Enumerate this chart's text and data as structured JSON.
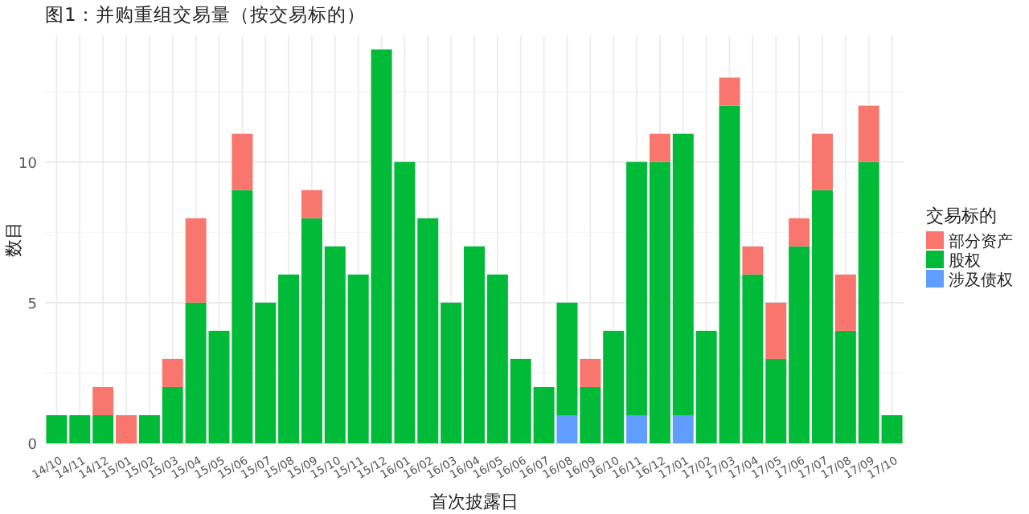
{
  "chart_data": {
    "type": "bar",
    "title": "图1：并购重组交易量（按交易标的）",
    "xlabel": "首次披露日",
    "ylabel": "数目",
    "legend_title": "交易标的",
    "stacked": true,
    "grid": true,
    "legend": "right",
    "categories": [
      "14/10",
      "14/11",
      "14/12",
      "15/01",
      "15/02",
      "15/03",
      "15/04",
      "15/05",
      "15/06",
      "15/07",
      "15/08",
      "15/09",
      "15/10",
      "15/11",
      "15/12",
      "16/01",
      "16/02",
      "16/03",
      "16/04",
      "16/05",
      "16/06",
      "16/07",
      "16/08",
      "16/09",
      "16/10",
      "16/11",
      "16/12",
      "17/01",
      "17/02",
      "17/03",
      "17/04",
      "17/05",
      "17/06",
      "17/07",
      "17/08",
      "17/09",
      "17/10"
    ],
    "ylim": [
      0,
      14.5
    ],
    "yticks": [
      0,
      {
        "value": 2.5,
        "label": null
      },
      5,
      {
        "value": 7.5,
        "label": null
      },
      10,
      {
        "value": 12.5,
        "label": null
      }
    ],
    "series": [
      {
        "name": "涉及债权",
        "color": "#619cff",
        "values": [
          0,
          0,
          0,
          0,
          0,
          0,
          0,
          0,
          0,
          0,
          0,
          0,
          0,
          0,
          0,
          0,
          0,
          0,
          0,
          0,
          0,
          0,
          1,
          0,
          0,
          1,
          0,
          1,
          0,
          0,
          0,
          0,
          0,
          0,
          0,
          0,
          0
        ]
      },
      {
        "name": "股权",
        "color": "#00ba38",
        "values": [
          1,
          1,
          1,
          0,
          1,
          2,
          5,
          4,
          9,
          5,
          6,
          8,
          7,
          6,
          14,
          10,
          8,
          5,
          7,
          6,
          3,
          2,
          4,
          2,
          4,
          9,
          10,
          10,
          4,
          12,
          6,
          3,
          7,
          9,
          4,
          10,
          1
        ]
      },
      {
        "name": "部分资产",
        "color": "#f8766d",
        "values": [
          0,
          0,
          1,
          1,
          0,
          1,
          3,
          0,
          2,
          0,
          0,
          1,
          0,
          0,
          0,
          0,
          0,
          0,
          0,
          0,
          0,
          0,
          0,
          1,
          0,
          0,
          1,
          0,
          0,
          1,
          1,
          2,
          1,
          2,
          2,
          2,
          0
        ]
      }
    ]
  }
}
